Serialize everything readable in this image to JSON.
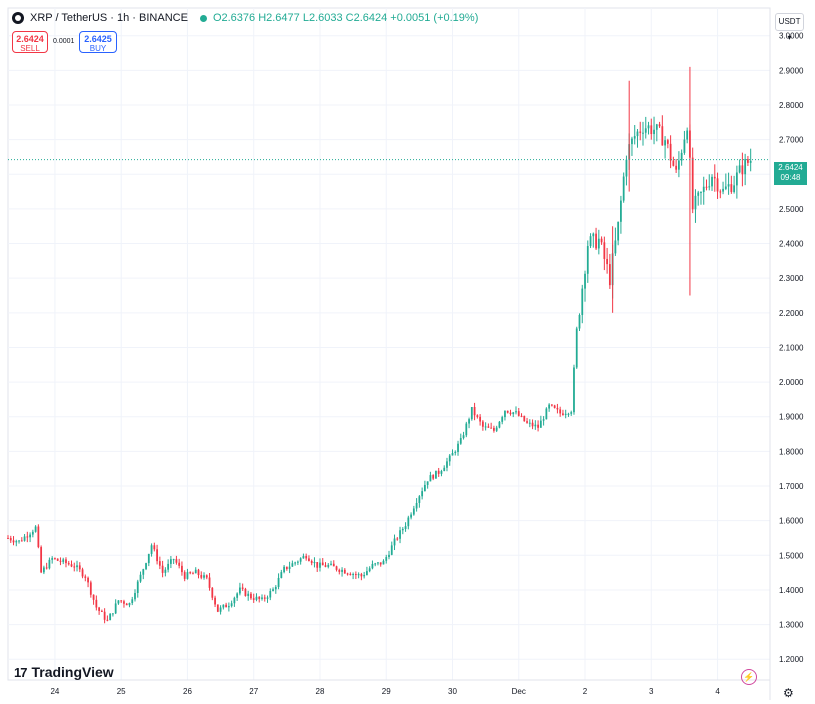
{
  "header": {
    "symbol": "XRP / TetherUS · 1h · BINANCE",
    "ohlc": "O2.6376 H2.6477 L2.6033 C2.6424 +0.0051 (+0.19%)"
  },
  "trade": {
    "sell_price": "2.6424",
    "sell_label": "SELL",
    "spread": "0.0001",
    "buy_price": "2.6425",
    "buy_label": "BUY"
  },
  "currency": "USDT",
  "last_price": {
    "value": "2.6424",
    "countdown": "09:48"
  },
  "brand": "TradingView",
  "colors": {
    "up": "#22ab94",
    "down": "#f23645",
    "grid": "#f0f3fa",
    "price_line": "#22ab94"
  },
  "chart_data": {
    "type": "candlestick",
    "y_ticks": [
      "3.0000",
      "2.9000",
      "2.8000",
      "2.7000",
      "2.6000",
      "2.5000",
      "2.4000",
      "2.3000",
      "2.2000",
      "2.1000",
      "2.0000",
      "1.9000",
      "1.8000",
      "1.7000",
      "1.6000",
      "1.5000",
      "1.4000",
      "1.3000",
      "1.2000"
    ],
    "ylim": [
      1.14,
      3.08
    ],
    "x_ticks": [
      {
        "label": "24",
        "t": 17
      },
      {
        "label": "25",
        "t": 41
      },
      {
        "label": "26",
        "t": 65
      },
      {
        "label": "27",
        "t": 89
      },
      {
        "label": "28",
        "t": 113
      },
      {
        "label": "29",
        "t": 137
      },
      {
        "label": "30",
        "t": 161
      },
      {
        "label": "Dec",
        "t": 185
      },
      {
        "label": "2",
        "t": 209
      },
      {
        "label": "3",
        "t": 233
      },
      {
        "label": "4",
        "t": 257
      }
    ],
    "xlim": [
      0,
      276
    ],
    "price_line": 2.6424,
    "close_series": [
      [
        0,
        1.55
      ],
      [
        4,
        1.54
      ],
      [
        10,
        1.58
      ],
      [
        12,
        1.45
      ],
      [
        16,
        1.49
      ],
      [
        20,
        1.48
      ],
      [
        24,
        1.47
      ],
      [
        28,
        1.44
      ],
      [
        32,
        1.35
      ],
      [
        36,
        1.31
      ],
      [
        40,
        1.37
      ],
      [
        44,
        1.36
      ],
      [
        48,
        1.44
      ],
      [
        52,
        1.53
      ],
      [
        56,
        1.45
      ],
      [
        60,
        1.49
      ],
      [
        64,
        1.44
      ],
      [
        68,
        1.45
      ],
      [
        72,
        1.43
      ],
      [
        76,
        1.34
      ],
      [
        80,
        1.36
      ],
      [
        84,
        1.4
      ],
      [
        88,
        1.38
      ],
      [
        92,
        1.37
      ],
      [
        96,
        1.4
      ],
      [
        100,
        1.46
      ],
      [
        104,
        1.48
      ],
      [
        108,
        1.5
      ],
      [
        112,
        1.47
      ],
      [
        116,
        1.47
      ],
      [
        120,
        1.46
      ],
      [
        124,
        1.45
      ],
      [
        128,
        1.44
      ],
      [
        132,
        1.47
      ],
      [
        136,
        1.48
      ],
      [
        140,
        1.54
      ],
      [
        144,
        1.59
      ],
      [
        148,
        1.66
      ],
      [
        152,
        1.72
      ],
      [
        156,
        1.74
      ],
      [
        160,
        1.78
      ],
      [
        164,
        1.83
      ],
      [
        168,
        1.92
      ],
      [
        172,
        1.87
      ],
      [
        176,
        1.86
      ],
      [
        180,
        1.92
      ],
      [
        184,
        1.91
      ],
      [
        188,
        1.88
      ],
      [
        192,
        1.87
      ],
      [
        196,
        1.93
      ],
      [
        200,
        1.91
      ],
      [
        204,
        1.92
      ],
      [
        206,
        2.15
      ],
      [
        210,
        2.4
      ],
      [
        214,
        2.41
      ],
      [
        218,
        2.3
      ],
      [
        221,
        2.45
      ],
      [
        224,
        2.66
      ],
      [
        227,
        2.71
      ],
      [
        230,
        2.74
      ],
      [
        234,
        2.73
      ],
      [
        238,
        2.7
      ],
      [
        242,
        2.6
      ],
      [
        246,
        2.75
      ],
      [
        248,
        2.5
      ],
      [
        251,
        2.54
      ],
      [
        255,
        2.6
      ],
      [
        259,
        2.55
      ],
      [
        263,
        2.58
      ],
      [
        266,
        2.62
      ],
      [
        269,
        2.6424
      ]
    ]
  }
}
